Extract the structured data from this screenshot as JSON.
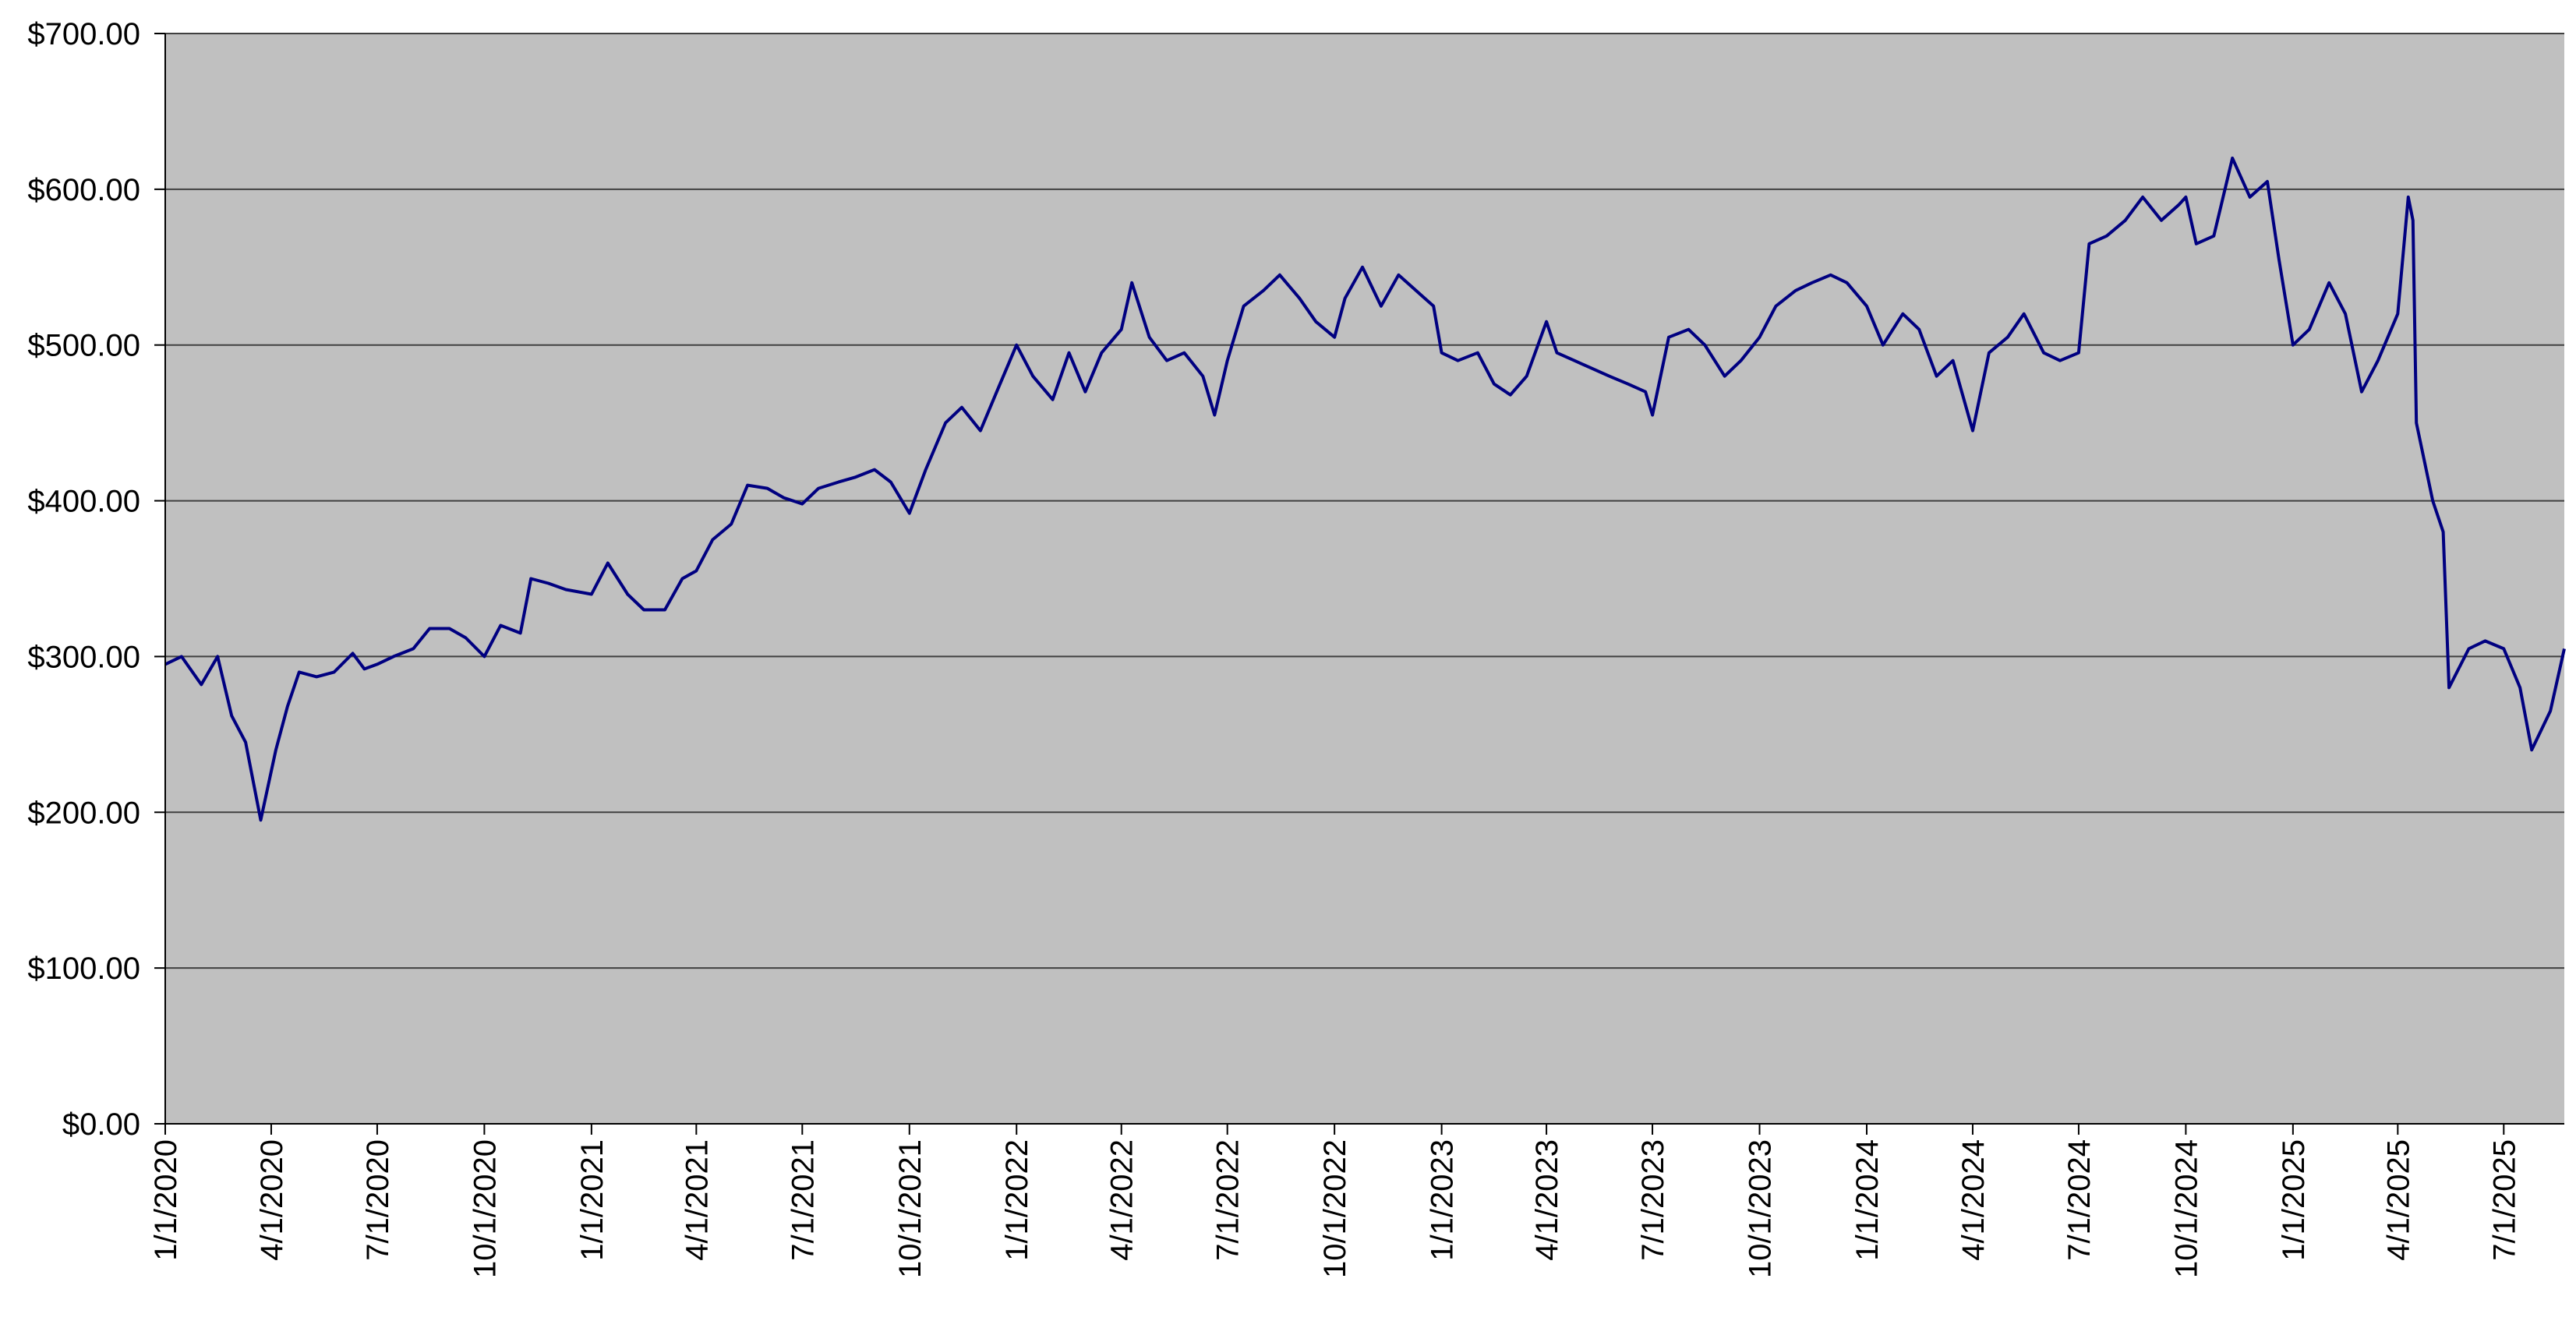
{
  "chart_data": {
    "type": "line",
    "title": "",
    "xlabel": "",
    "ylabel": "",
    "ylim": [
      0,
      700
    ],
    "y_ticks": [
      {
        "value": 0,
        "label": "$0.00"
      },
      {
        "value": 100,
        "label": "$100.00"
      },
      {
        "value": 200,
        "label": "$200.00"
      },
      {
        "value": 300,
        "label": "$300.00"
      },
      {
        "value": 400,
        "label": "$400.00"
      },
      {
        "value": 500,
        "label": "$500.00"
      },
      {
        "value": 600,
        "label": "$600.00"
      },
      {
        "value": 700,
        "label": "$700.00"
      }
    ],
    "x_range": [
      "1/1/2020",
      "8/22/2025"
    ],
    "x_ticks": [
      "1/1/2020",
      "4/1/2020",
      "7/1/2020",
      "10/1/2020",
      "1/1/2021",
      "4/1/2021",
      "7/1/2021",
      "10/1/2021",
      "1/1/2022",
      "4/1/2022",
      "7/1/2022",
      "10/1/2022",
      "1/1/2023",
      "4/1/2023",
      "7/1/2023",
      "10/1/2023",
      "1/1/2024",
      "4/1/2024",
      "7/1/2024",
      "10/1/2024",
      "1/1/2025",
      "4/1/2025",
      "7/1/2025"
    ],
    "grid": true,
    "legend": "none",
    "colors": {
      "plot_background": "#C0C0C0",
      "line": "#000080",
      "gridline": "#404040"
    },
    "series": [
      {
        "points": [
          [
            "1/1/2020",
            295
          ],
          [
            "1/15/2020",
            300
          ],
          [
            "2/1/2020",
            282
          ],
          [
            "2/15/2020",
            300
          ],
          [
            "2/27/2020",
            262
          ],
          [
            "3/10/2020",
            245
          ],
          [
            "3/23/2020",
            195
          ],
          [
            "4/5/2020",
            240
          ],
          [
            "4/15/2020",
            268
          ],
          [
            "4/25/2020",
            290
          ],
          [
            "5/10/2020",
            287
          ],
          [
            "5/25/2020",
            290
          ],
          [
            "6/10/2020",
            302
          ],
          [
            "6/20/2020",
            292
          ],
          [
            "7/1/2020",
            295
          ],
          [
            "7/15/2020",
            300
          ],
          [
            "8/1/2020",
            305
          ],
          [
            "8/15/2020",
            318
          ],
          [
            "9/1/2020",
            318
          ],
          [
            "9/15/2020",
            312
          ],
          [
            "10/1/2020",
            300
          ],
          [
            "10/15/2020",
            320
          ],
          [
            "11/1/2020",
            315
          ],
          [
            "11/10/2020",
            350
          ],
          [
            "11/25/2020",
            347
          ],
          [
            "12/10/2020",
            343
          ],
          [
            "1/1/2021",
            340
          ],
          [
            "1/15/2021",
            360
          ],
          [
            "2/1/2021",
            340
          ],
          [
            "2/15/2021",
            330
          ],
          [
            "3/5/2021",
            330
          ],
          [
            "3/20/2021",
            350
          ],
          [
            "4/1/2021",
            355
          ],
          [
            "4/15/2021",
            375
          ],
          [
            "5/1/2021",
            385
          ],
          [
            "5/15/2021",
            410
          ],
          [
            "6/1/2021",
            408
          ],
          [
            "6/15/2021",
            402
          ],
          [
            "7/1/2021",
            398
          ],
          [
            "7/15/2021",
            408
          ],
          [
            "8/1/2021",
            412
          ],
          [
            "8/15/2021",
            415
          ],
          [
            "9/1/2021",
            420
          ],
          [
            "9/15/2021",
            412
          ],
          [
            "10/1/2021",
            392
          ],
          [
            "10/15/2021",
            420
          ],
          [
            "11/1/2021",
            450
          ],
          [
            "11/15/2021",
            460
          ],
          [
            "12/1/2021",
            445
          ],
          [
            "12/15/2021",
            470
          ],
          [
            "1/1/2022",
            500
          ],
          [
            "1/15/2022",
            480
          ],
          [
            "2/1/2022",
            465
          ],
          [
            "2/15/2022",
            495
          ],
          [
            "3/1/2022",
            470
          ],
          [
            "3/15/2022",
            495
          ],
          [
            "4/1/2022",
            510
          ],
          [
            "4/10/2022",
            540
          ],
          [
            "4/25/2022",
            505
          ],
          [
            "5/10/2022",
            490
          ],
          [
            "5/25/2022",
            495
          ],
          [
            "6/10/2022",
            480
          ],
          [
            "6/20/2022",
            455
          ],
          [
            "7/1/2022",
            490
          ],
          [
            "7/15/2022",
            525
          ],
          [
            "8/1/2022",
            535
          ],
          [
            "8/15/2022",
            545
          ],
          [
            "9/1/2022",
            530
          ],
          [
            "9/15/2022",
            515
          ],
          [
            "10/1/2022",
            505
          ],
          [
            "10/10/2022",
            530
          ],
          [
            "10/25/2022",
            550
          ],
          [
            "11/10/2022",
            525
          ],
          [
            "11/25/2022",
            545
          ],
          [
            "12/10/2022",
            535
          ],
          [
            "12/25/2022",
            525
          ],
          [
            "1/1/2023",
            495
          ],
          [
            "1/15/2023",
            490
          ],
          [
            "2/1/2023",
            495
          ],
          [
            "2/15/2023",
            475
          ],
          [
            "3/1/2023",
            468
          ],
          [
            "3/15/2023",
            480
          ],
          [
            "4/1/2023",
            515
          ],
          [
            "4/10/2023",
            495
          ],
          [
            "4/25/2023",
            490
          ],
          [
            "5/10/2023",
            485
          ],
          [
            "5/25/2023",
            480
          ],
          [
            "6/10/2023",
            475
          ],
          [
            "6/25/2023",
            470
          ],
          [
            "7/1/2023",
            455
          ],
          [
            "7/15/2023",
            505
          ],
          [
            "8/1/2023",
            510
          ],
          [
            "8/15/2023",
            500
          ],
          [
            "9/1/2023",
            480
          ],
          [
            "9/15/2023",
            490
          ],
          [
            "10/1/2023",
            505
          ],
          [
            "10/15/2023",
            525
          ],
          [
            "11/1/2023",
            535
          ],
          [
            "11/15/2023",
            540
          ],
          [
            "12/1/2023",
            545
          ],
          [
            "12/15/2023",
            540
          ],
          [
            "1/1/2024",
            525
          ],
          [
            "1/15/2024",
            500
          ],
          [
            "2/1/2024",
            520
          ],
          [
            "2/15/2024",
            510
          ],
          [
            "3/1/2024",
            480
          ],
          [
            "3/15/2024",
            490
          ],
          [
            "4/1/2024",
            445
          ],
          [
            "4/15/2024",
            495
          ],
          [
            "5/1/2024",
            505
          ],
          [
            "5/15/2024",
            520
          ],
          [
            "6/1/2024",
            495
          ],
          [
            "6/15/2024",
            490
          ],
          [
            "7/1/2024",
            495
          ],
          [
            "7/10/2024",
            565
          ],
          [
            "7/25/2024",
            570
          ],
          [
            "8/10/2024",
            580
          ],
          [
            "8/25/2024",
            595
          ],
          [
            "9/10/2024",
            580
          ],
          [
            "9/25/2024",
            590
          ],
          [
            "10/1/2024",
            595
          ],
          [
            "10/10/2024",
            565
          ],
          [
            "10/25/2024",
            570
          ],
          [
            "11/10/2024",
            620
          ],
          [
            "11/25/2024",
            595
          ],
          [
            "12/10/2024",
            605
          ],
          [
            "12/20/2024",
            555
          ],
          [
            "1/1/2025",
            500
          ],
          [
            "1/15/2025",
            510
          ],
          [
            "2/1/2025",
            540
          ],
          [
            "2/15/2025",
            520
          ],
          [
            "3/1/2025",
            470
          ],
          [
            "3/15/2025",
            490
          ],
          [
            "4/1/2025",
            520
          ],
          [
            "4/10/2025",
            595
          ],
          [
            "4/14/2025",
            580
          ],
          [
            "4/17/2025",
            450
          ],
          [
            "5/1/2025",
            400
          ],
          [
            "5/10/2025",
            380
          ],
          [
            "5/15/2025",
            280
          ],
          [
            "6/1/2025",
            305
          ],
          [
            "6/15/2025",
            310
          ],
          [
            "7/1/2025",
            305
          ],
          [
            "7/15/2025",
            280
          ],
          [
            "7/25/2025",
            240
          ],
          [
            "8/10/2025",
            265
          ],
          [
            "8/22/2025",
            305
          ]
        ]
      }
    ]
  }
}
